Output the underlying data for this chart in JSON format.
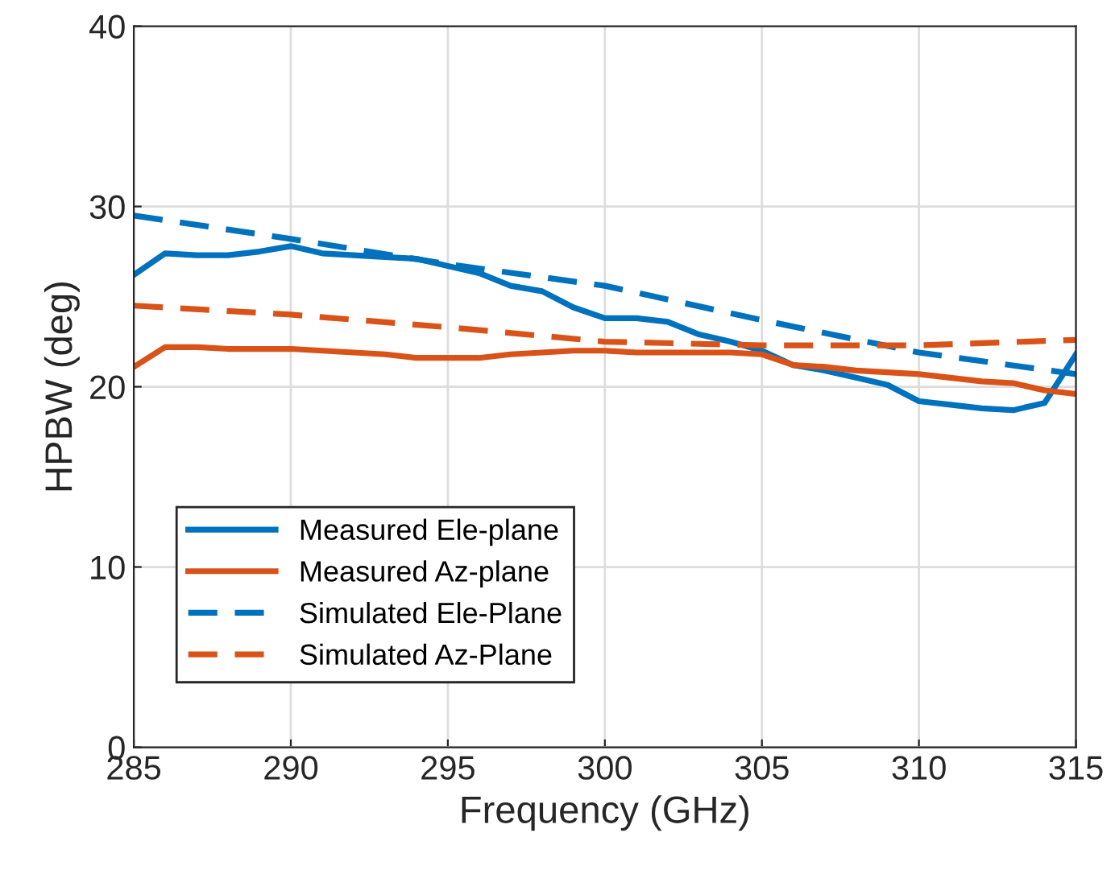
{
  "chart_data": {
    "type": "line",
    "xlabel": "Frequency (GHz)",
    "ylabel": "HPBW (deg)",
    "xlim": [
      285,
      315
    ],
    "ylim": [
      0,
      40
    ],
    "xticks": [
      285,
      290,
      295,
      300,
      305,
      310,
      315
    ],
    "yticks": [
      0,
      10,
      20,
      30,
      40
    ],
    "grid": true,
    "legend": "bottom left",
    "series": [
      {
        "name": "Measured Ele-plane",
        "color": "#0072bd",
        "line_style": "solid",
        "x": [
          285,
          286,
          287,
          288,
          289,
          290,
          291,
          292,
          293,
          294,
          295,
          296,
          297,
          298,
          299,
          300,
          301,
          302,
          303,
          304,
          305,
          306,
          307,
          308,
          309,
          310,
          311,
          312,
          313,
          314,
          315
        ],
        "values": [
          26.2,
          27.4,
          27.3,
          27.3,
          27.5,
          27.8,
          27.4,
          27.3,
          27.2,
          27.1,
          26.7,
          26.3,
          25.6,
          25.3,
          24.4,
          23.8,
          23.8,
          23.6,
          22.9,
          22.5,
          22.0,
          21.2,
          20.9,
          20.5,
          20.1,
          19.2,
          19.0,
          18.8,
          18.7,
          19.1,
          21.8
        ]
      },
      {
        "name": "Measured Az-plane",
        "color": "#d95319",
        "line_style": "solid",
        "x": [
          285,
          286,
          287,
          288,
          289,
          290,
          291,
          292,
          293,
          294,
          295,
          296,
          297,
          298,
          299,
          300,
          301,
          302,
          303,
          304,
          305,
          306,
          307,
          308,
          309,
          310,
          311,
          312,
          313,
          314,
          315
        ],
        "values": [
          21.1,
          22.2,
          22.2,
          22.1,
          22.1,
          22.1,
          22.0,
          21.9,
          21.8,
          21.6,
          21.6,
          21.6,
          21.8,
          21.9,
          22.0,
          22.0,
          21.9,
          21.9,
          21.9,
          21.9,
          21.8,
          21.2,
          21.1,
          20.9,
          20.8,
          20.7,
          20.5,
          20.3,
          20.2,
          19.8,
          19.6
        ]
      },
      {
        "name": "Simulated Ele-Plane",
        "color": "#0072bd",
        "line_style": "dashed",
        "x": [
          285,
          290,
          295,
          300,
          305,
          310,
          315
        ],
        "values": [
          29.5,
          28.2,
          26.8,
          25.6,
          23.7,
          21.9,
          20.7
        ]
      },
      {
        "name": "Simulated Az-Plane",
        "color": "#d95319",
        "line_style": "dashed",
        "x": [
          285,
          290,
          295,
          300,
          305,
          310,
          315
        ],
        "values": [
          24.5,
          24.0,
          23.3,
          22.5,
          22.3,
          22.3,
          22.6
        ]
      }
    ]
  }
}
